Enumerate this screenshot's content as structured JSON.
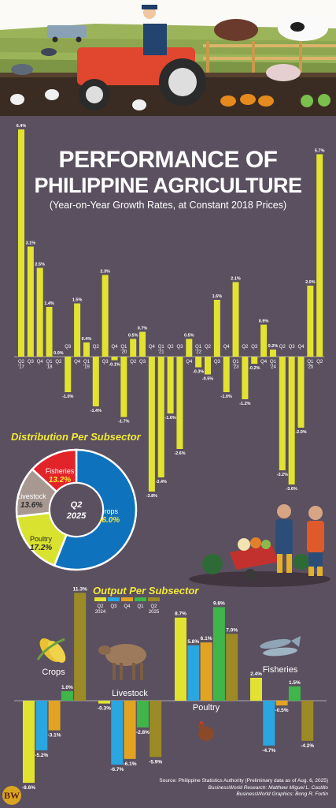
{
  "header": {
    "title_line1": "PERFORMANCE OF",
    "title_line2": "PHILIPPINE AGRICULTURE",
    "subtitle": "(Year-on-Year Growth Rates, at Constant 2018 Prices)"
  },
  "distribution": {
    "title": "Distribution Per Subsector",
    "center_line1": "Q2",
    "center_line2": "2025"
  },
  "output": {
    "title": "Output Per Subsector",
    "legend": [
      {
        "line1": "Q2",
        "line2": "2024",
        "color": "#e2e331"
      },
      {
        "line1": "Q3",
        "line2": "",
        "color": "#2aa6e0"
      },
      {
        "line1": "Q4",
        "line2": "",
        "color": "#e2a322"
      },
      {
        "line1": "Q1",
        "line2": "",
        "color": "#3fb54a"
      },
      {
        "line1": "Q2",
        "line2": "2025",
        "color": "#9c8a26"
      }
    ]
  },
  "source": {
    "line1": "Source: Philippine Statistics Authority (Preliminary data as of Aug. 6, 2025)",
    "line2": "BusinessWorld Research: Matthew Miguel L. Castillo",
    "line3": "BusinessWorld Graphics: Bong R. Fortin"
  },
  "logo": "BW",
  "colors": {
    "background": "#5b5060",
    "bar": "#e2e331",
    "crops": "#0e72bd",
    "livestock": "#a79991",
    "poultry": "#d9e22e",
    "fisheries": "#e3232a"
  },
  "chart_data": [
    {
      "type": "bar",
      "title": "PERFORMANCE OF PHILIPPINE AGRICULTURE",
      "subtitle": "(Year-on-Year Growth Rates, at Constant 2018 Prices)",
      "categories": [
        "Q2 '17",
        "Q3",
        "Q4",
        "Q1 '18",
        "Q2",
        "Q3",
        "Q4",
        "Q1 '19",
        "Q2",
        "Q3",
        "Q4",
        "Q1 '20",
        "Q2",
        "Q3",
        "Q4",
        "Q1 '21",
        "Q2",
        "Q3",
        "Q4",
        "Q1 '22",
        "Q2",
        "Q3",
        "Q4",
        "Q1 '23",
        "Q2",
        "Q3",
        "Q4",
        "Q1 '24",
        "Q2",
        "Q3",
        "Q4",
        "Q1 '25",
        "Q2"
      ],
      "values": [
        6.4,
        3.1,
        2.5,
        1.4,
        0.0,
        -1.0,
        1.5,
        0.4,
        -1.4,
        2.3,
        -0.1,
        -1.7,
        0.5,
        0.7,
        -3.8,
        -3.4,
        -1.6,
        -2.6,
        0.5,
        -0.3,
        -0.5,
        1.6,
        -1.0,
        2.1,
        -1.2,
        -0.2,
        0.9,
        0.2,
        -3.2,
        -3.6,
        -2.0,
        2.0,
        5.7
      ],
      "value_labels": [
        "6.4%",
        "3.1%",
        "2.5%",
        "1.4%",
        "0.0%",
        "-1.0%",
        "1.5%",
        "0.4%",
        "-1.4%",
        "2.3%",
        "-0.1%",
        "-1.7%",
        "0.5%",
        "0.7%",
        "-3.8%",
        "-3.4%",
        "-1.6%",
        "-2.6%",
        "0.5%",
        "-0.3%",
        "-0.5%",
        "1.6%",
        "-1.0%",
        "2.1%",
        "-1.2%",
        "-0.2%",
        "0.9%",
        "0.2%",
        "-3.2%",
        "-3.6%",
        "-2.0%",
        "2.0%",
        "5.7%"
      ]
    },
    {
      "type": "pie",
      "title": "Distribution Per Subsector",
      "slices": [
        {
          "label": "Crops",
          "value": 56.0,
          "text": "56.0%",
          "color": "#0e72bd"
        },
        {
          "label": "Poultry",
          "value": 17.2,
          "text": "17.2%",
          "color": "#d9e22e"
        },
        {
          "label": "Livestock",
          "value": 13.6,
          "text": "13.6%",
          "color": "#a79991"
        },
        {
          "label": "Fisheries",
          "value": 13.2,
          "text": "13.2%",
          "color": "#e3232a"
        }
      ]
    },
    {
      "type": "bar",
      "title": "Output Per Subsector",
      "categories": [
        "Crops",
        "Livestock",
        "Poultry",
        "Fisheries"
      ],
      "series": [
        {
          "name": "Q2 2024",
          "color": "#e2e331",
          "values": [
            -8.6,
            -0.3,
            8.7,
            2.4
          ],
          "labels": [
            "-8.6%",
            "-0.3%",
            "8.7%",
            "2.4%"
          ]
        },
        {
          "name": "Q3",
          "color": "#2aa6e0",
          "values": [
            -5.2,
            -6.7,
            5.8,
            -4.7
          ],
          "labels": [
            "-5.2%",
            "-6.7%",
            "5.8%",
            "-4.7%"
          ]
        },
        {
          "name": "Q4",
          "color": "#e2a322",
          "values": [
            -3.1,
            -6.1,
            6.1,
            -0.5
          ],
          "labels": [
            "-3.1%",
            "-6.1%",
            "6.1%",
            "-0.5%"
          ]
        },
        {
          "name": "Q1",
          "color": "#3fb54a",
          "values": [
            1.0,
            -2.8,
            9.8,
            1.5
          ],
          "labels": [
            "1.0%",
            "-2.8%",
            "9.8%",
            "1.5%"
          ]
        },
        {
          "name": "Q2 2025",
          "color": "#9c8a26",
          "values": [
            11.3,
            -5.9,
            7.0,
            -4.2
          ],
          "labels": [
            "11.3%",
            "-5.9%",
            "7.0%",
            "-4.2%"
          ]
        }
      ]
    }
  ]
}
